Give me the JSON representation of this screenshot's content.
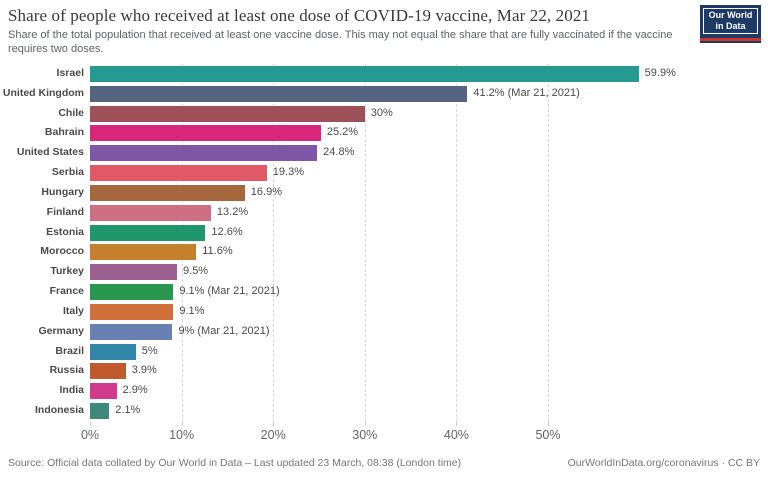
{
  "header": {
    "title": "Share of people who received at least one dose of COVID-19 vaccine, Mar 22, 2021",
    "subtitle": "Share of the total population that received at least one vaccine dose. This may not equal the share that are fully vaccinated if the vaccine requires two doses.",
    "logo": {
      "line1": "Our World",
      "line2": "in Data",
      "bg_color": "#1c3a63",
      "stripe_color": "#d0342c"
    }
  },
  "chart_data": {
    "type": "bar",
    "orientation": "horizontal",
    "title": "Share of people who received at least one dose of COVID-19 vaccine, Mar 22, 2021",
    "categories": [
      "Israel",
      "United Kingdom",
      "Chile",
      "Bahrain",
      "United States",
      "Serbia",
      "Hungary",
      "Finland",
      "Estonia",
      "Morocco",
      "Turkey",
      "France",
      "Italy",
      "Germany",
      "Brazil",
      "Russia",
      "India",
      "Indonesia"
    ],
    "values": [
      59.9,
      41.2,
      30,
      25.2,
      24.8,
      19.3,
      16.9,
      13.2,
      12.6,
      11.6,
      9.5,
      9.1,
      9.1,
      9,
      5,
      3.9,
      2.9,
      2.1
    ],
    "value_labels": [
      "59.9%",
      "41.2% (Mar 21, 2021)",
      "30%",
      "25.2%",
      "24.8%",
      "19.3%",
      "16.9%",
      "13.2%",
      "12.6%",
      "11.6%",
      "9.5%",
      "9.1% (Mar 21, 2021)",
      "9.1%",
      "9% (Mar 21, 2021)",
      "5%",
      "3.9%",
      "2.9%",
      "2.1%"
    ],
    "bar_colors": [
      "#249a90",
      "#55647e",
      "#9d5058",
      "#d8267a",
      "#7e57a7",
      "#df5a66",
      "#a4683c",
      "#ce7084",
      "#21966c",
      "#c4802f",
      "#9c6090",
      "#28964f",
      "#d06f39",
      "#6b80b2",
      "#3187a9",
      "#c05a2d",
      "#d23b8d",
      "#3e8a7a"
    ],
    "xlim": [
      0,
      60
    ],
    "x_ticks": [
      0,
      10,
      20,
      30,
      40,
      50
    ],
    "x_tick_labels": [
      "0%",
      "10%",
      "20%",
      "30%",
      "40%",
      "50%"
    ],
    "grid": "vertical-dashed",
    "legend": "none"
  },
  "footer": {
    "source": "Source: Official data collated by Our World in Data – Last updated 23 March, 08:38 (London time)",
    "license": "OurWorldInData.org/coronavirus · CC BY"
  }
}
